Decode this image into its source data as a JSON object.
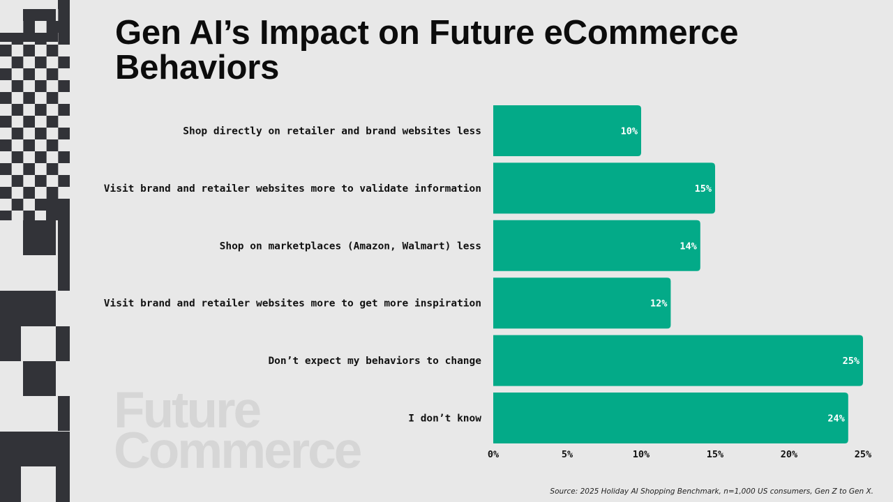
{
  "title": {
    "line1": "Gen AI’s Impact on Future eCommerce",
    "line2": "Behaviors"
  },
  "logo": {
    "line1": "Future",
    "line2": "Commerce"
  },
  "source": "Source: 2025 Holiday AI Shopping Benchmark, n=1,000 US consumers, Gen Z to Gen X.",
  "colors": {
    "bar": "#03aa88",
    "background": "#e8e8e8",
    "decor": "#323338"
  },
  "chart_data": {
    "type": "bar",
    "orientation": "horizontal",
    "categories": [
      "Shop directly on retailer and brand websites less",
      "Visit brand and retailer websites more to validate information",
      "Shop on marketplaces (Amazon, Walmart) less",
      "Visit brand and retailer websites more to get more inspiration",
      "Don’t expect my behaviors to change",
      "I don’t know"
    ],
    "values": [
      10,
      15,
      14,
      12,
      25,
      24
    ],
    "value_labels": [
      "10%",
      "15%",
      "14%",
      "12%",
      "25%",
      "24%"
    ],
    "xlim": [
      0,
      25
    ],
    "xticks": [
      0,
      5,
      10,
      15,
      20,
      25
    ],
    "xtick_labels": [
      "0%",
      "5%",
      "10%",
      "15%",
      "20%",
      "25%"
    ],
    "grid": false,
    "legend": "none"
  }
}
